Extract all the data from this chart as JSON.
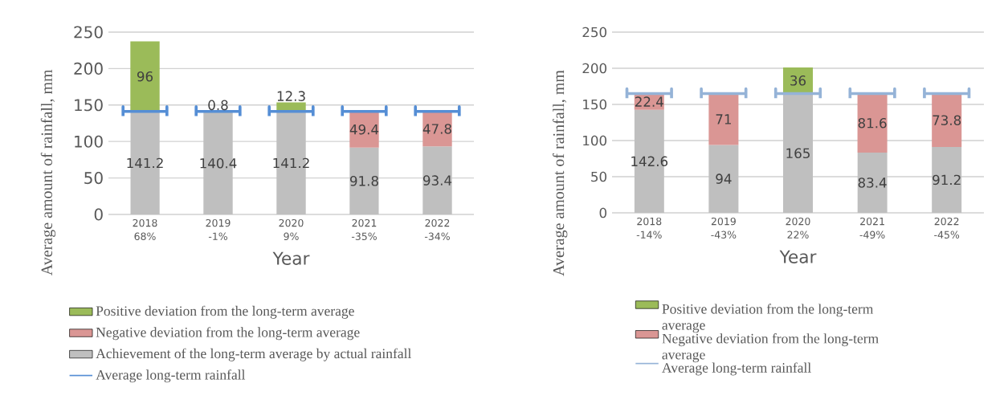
{
  "chart_data": [
    {
      "type": "bar",
      "stacked": true,
      "ylabel": "Average amount of rainfall, mm",
      "xlabel": "Year",
      "categories": [
        "2018 68%",
        "2019 -1%",
        "2020 9%",
        "2021 -35%",
        "2022 -34%"
      ],
      "ylim": [
        0,
        250
      ],
      "yticks": [
        0,
        50,
        100,
        150,
        200,
        250
      ],
      "grid": "y",
      "legend": "bottom",
      "series": [
        {
          "name": "Achievement of the long-term average by actual rainfall",
          "color": "#bfbfbf",
          "values": [
            141.2,
            140.4,
            141.2,
            91.8,
            93.4
          ],
          "value_labels": [
            "141.2",
            "140.4",
            "141.2",
            "91.8",
            "93.4"
          ]
        },
        {
          "name": "Negative deviation from the long-term average",
          "color": "#da9694",
          "values": [
            null,
            0.8,
            null,
            49.4,
            47.8
          ],
          "value_labels": [
            null,
            "0.8",
            null,
            "49.4",
            "47.8"
          ]
        },
        {
          "name": "Positive deviation from the long-term average",
          "color": "#9bbb59",
          "values": [
            96,
            null,
            12.3,
            null,
            null
          ],
          "value_labels": [
            "96",
            null,
            "12.3",
            null,
            null
          ]
        }
      ],
      "ref_lines": [
        {
          "axis": "y",
          "value": 141.2,
          "label": "Average long-term rainfall",
          "color": "#558ed5"
        }
      ]
    },
    {
      "type": "bar",
      "stacked": true,
      "ylabel": "Average amount of rainfall, mm",
      "xlabel": "Year",
      "categories": [
        "2018 -14%",
        "2019 -43%",
        "2020 22%",
        "2021 -49%",
        "2022 -45%"
      ],
      "ylim": [
        0,
        250
      ],
      "yticks": [
        0,
        50,
        100,
        150,
        200,
        250
      ],
      "grid": "y",
      "legend": "bottom",
      "series": [
        {
          "color": "#bfbfbf",
          "values": [
            142.6,
            94,
            165,
            83.4,
            91.2
          ],
          "value_labels": [
            "142.6",
            "94",
            "165",
            "83.4",
            "91.2"
          ]
        },
        {
          "name": "Negative deviation from the long-term average",
          "color": "#da9694",
          "values": [
            22.4,
            71,
            null,
            81.6,
            73.8
          ],
          "value_labels": [
            "22.4",
            "71",
            null,
            "81.6",
            "73.8"
          ]
        },
        {
          "name": "Positive deviation from the long-term average",
          "color": "#9bbb59",
          "values": [
            null,
            null,
            36,
            null,
            null
          ],
          "value_labels": [
            null,
            null,
            "36",
            null,
            null
          ]
        }
      ],
      "ref_lines": [
        {
          "axis": "y",
          "value": 165,
          "label": "Average long-term rainfall",
          "color": "#95b3d7"
        }
      ]
    }
  ]
}
